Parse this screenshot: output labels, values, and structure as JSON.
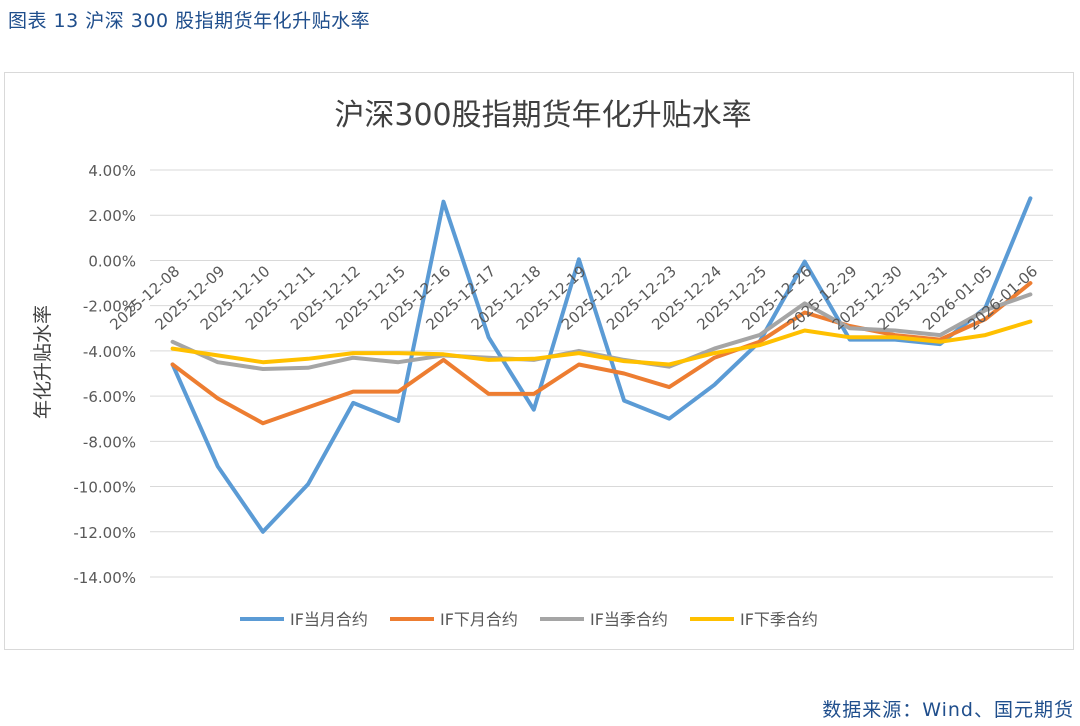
{
  "figure": {
    "caption": "图表 13  沪深 300 股指期货年化升贴水率",
    "source": "数据来源：Wind、国元期货"
  },
  "chart_data": {
    "type": "line",
    "title": "沪深300股指期货年化升贴水率",
    "ylabel": "年化升贴水率",
    "xlabel": "",
    "ylim": [
      -14,
      4
    ],
    "ytick_step": 2,
    "ytick_labels": [
      "4.00%",
      "2.00%",
      "0.00%",
      "-2.00%",
      "-4.00%",
      "-6.00%",
      "-8.00%",
      "-10.00%",
      "-12.00%",
      "-14.00%"
    ],
    "ytick_values": [
      4,
      2,
      0,
      -2,
      -4,
      -6,
      -8,
      -10,
      -12,
      -14
    ],
    "grid": true,
    "legend_position": "bottom",
    "categories": [
      "2025-12-08",
      "2025-12-09",
      "2025-12-10",
      "2025-12-11",
      "2025-12-12",
      "2025-12-15",
      "2025-12-16",
      "2025-12-17",
      "2025-12-18",
      "2025-12-19",
      "2025-12-22",
      "2025-12-23",
      "2025-12-24",
      "2025-12-25",
      "2025-12-26",
      "2025-12-29",
      "2025-12-30",
      "2025-12-31",
      "2026-01-05",
      "2026-01-06"
    ],
    "series": [
      {
        "name": "IF当月合约",
        "color": "#5b9bd5",
        "values": [
          -4.6,
          -9.1,
          -12.0,
          -9.9,
          -6.3,
          -7.1,
          2.6,
          -3.4,
          -6.6,
          0.05,
          -6.2,
          -7.0,
          -5.5,
          -3.6,
          -0.05,
          -3.5,
          -3.5,
          -3.7,
          -2.1,
          2.75
        ]
      },
      {
        "name": "IF下月合约",
        "color": "#ed7d31",
        "values": [
          -4.6,
          -6.1,
          -7.2,
          -6.5,
          -5.8,
          -5.8,
          -4.4,
          -5.9,
          -5.9,
          -4.6,
          -5.0,
          -5.6,
          -4.3,
          -3.6,
          -2.3,
          -2.9,
          -3.3,
          -3.5,
          -2.6,
          -1.0
        ]
      },
      {
        "name": "IF当季合约",
        "color": "#a5a5a5",
        "values": [
          -3.6,
          -4.5,
          -4.8,
          -4.75,
          -4.3,
          -4.5,
          -4.2,
          -4.3,
          -4.4,
          -4.0,
          -4.4,
          -4.7,
          -3.9,
          -3.3,
          -1.9,
          -3.0,
          -3.1,
          -3.3,
          -2.2,
          -1.5
        ]
      },
      {
        "name": "IF下季合约",
        "color": "#ffc000",
        "values": [
          -3.9,
          -4.2,
          -4.5,
          -4.35,
          -4.1,
          -4.1,
          -4.15,
          -4.4,
          -4.35,
          -4.1,
          -4.45,
          -4.6,
          -4.1,
          -3.75,
          -3.1,
          -3.4,
          -3.4,
          -3.6,
          -3.3,
          -2.7
        ]
      }
    ]
  }
}
